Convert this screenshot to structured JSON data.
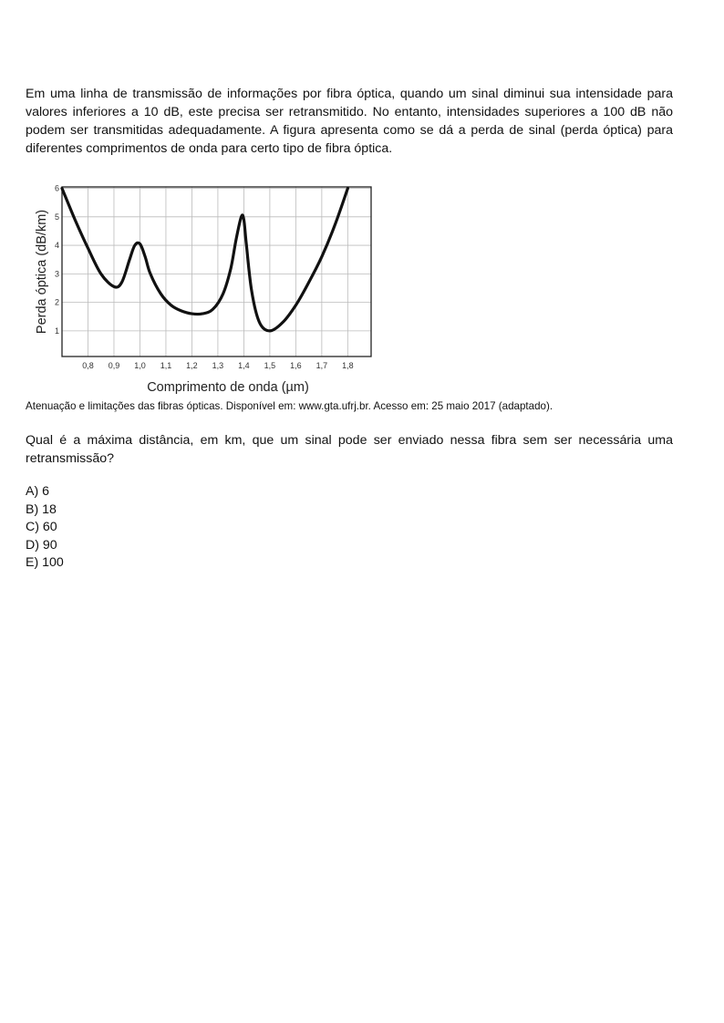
{
  "intro_text": "Em uma linha de transmissão de informações por fibra óptica, quando um sinal diminui sua intensidade para valores inferiores a 10 dB, este precisa ser retransmitido. No entanto, intensidades superiores a 100 dB não podem ser transmitidas adequadamente. A figura apresenta como se dá a perda de sinal (perda óptica) para diferentes comprimentos de onda para certo tipo de fibra óptica.",
  "caption": "Atenuação e limitações das fibras ópticas. Disponível em: www.gta.ufrj.br. Acesso em: 25 maio 2017 (adaptado).",
  "question": "Qual é a máxima distância, em km, que um sinal pode ser enviado nessa fibra sem ser necessária uma retransmissão?",
  "options": [
    "A) 6",
    "B) 18",
    "C) 60",
    "D) 90",
    "E) 100"
  ],
  "chart_data": {
    "type": "line",
    "xlabel": "Comprimento de onda (µm)",
    "ylabel": "Perda óptica (dB/km)",
    "xlim": [
      0.7,
      1.89
    ],
    "ylim": [
      0.1,
      6.05
    ],
    "x_ticks": [
      "0,8",
      "0,9",
      "1,0",
      "1,1",
      "1,2",
      "1,3",
      "1,4",
      "1,5",
      "1,6",
      "1,7",
      "1,8"
    ],
    "y_ticks": [
      "1",
      "2",
      "3",
      "4",
      "5",
      "6"
    ],
    "grid": true,
    "series": [
      {
        "x": [
          0.7,
          0.75,
          0.8,
          0.85,
          0.9,
          0.93,
          0.96,
          0.98,
          1.0,
          1.02,
          1.04,
          1.08,
          1.12,
          1.16,
          1.2,
          1.24,
          1.28,
          1.32,
          1.35,
          1.37,
          1.39,
          1.4,
          1.41,
          1.43,
          1.46,
          1.5,
          1.55,
          1.6,
          1.65,
          1.7,
          1.75,
          1.8
        ],
        "y": [
          6.0,
          4.9,
          3.9,
          3.0,
          2.55,
          2.7,
          3.5,
          4.0,
          4.05,
          3.6,
          3.0,
          2.3,
          1.9,
          1.7,
          1.6,
          1.6,
          1.75,
          2.3,
          3.2,
          4.2,
          5.0,
          4.9,
          4.0,
          2.4,
          1.3,
          1.0,
          1.3,
          1.9,
          2.7,
          3.6,
          4.7,
          6.0
        ]
      }
    ]
  }
}
